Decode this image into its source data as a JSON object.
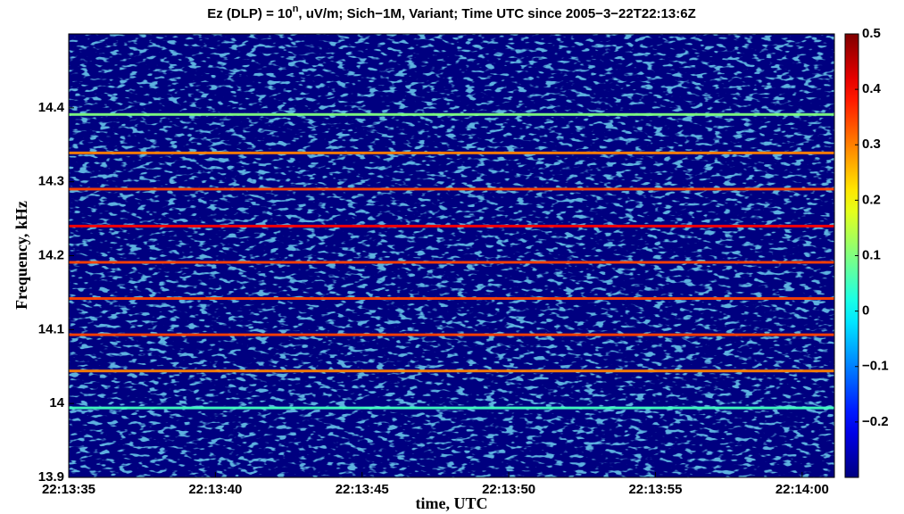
{
  "chart_data": {
    "type": "spectrogram",
    "title_parts": [
      "Ez (DLP) = 10",
      "n",
      ", uV/m; Sich−1M, Variant; Time UTC since 2005−3−22T22:13:6Z"
    ],
    "xlabel": "time, UTC",
    "ylabel": "Frequency, kHz",
    "xlim": [
      29,
      55.1
    ],
    "xticks": [
      {
        "value": 29,
        "label": "22:13:35"
      },
      {
        "value": 34,
        "label": "22:13:40"
      },
      {
        "value": 39,
        "label": "22:13:45"
      },
      {
        "value": 44,
        "label": "22:13:50"
      },
      {
        "value": 49,
        "label": "22:13:55"
      },
      {
        "value": 54,
        "label": "22:14:00"
      }
    ],
    "ylim": [
      13.9,
      14.5
    ],
    "yticks": [
      13.9,
      14,
      14.1,
      14.2,
      14.3,
      14.4
    ],
    "clim": [
      -0.3,
      0.5
    ],
    "cticks": [
      {
        "value": -0.2,
        "label": "−0.2"
      },
      {
        "value": -0.1,
        "label": "−0.1"
      },
      0,
      0.1,
      0.2,
      0.3,
      0.4,
      0.5
    ],
    "colormap": "jet",
    "bands": {
      "frequency": [
        13.994,
        14.044,
        14.093,
        14.142,
        14.191,
        14.24,
        14.29,
        14.339,
        14.391
      ],
      "level": [
        0.05,
        0.3,
        0.35,
        0.35,
        0.35,
        0.4,
        0.35,
        0.3,
        0.1
      ]
    }
  }
}
